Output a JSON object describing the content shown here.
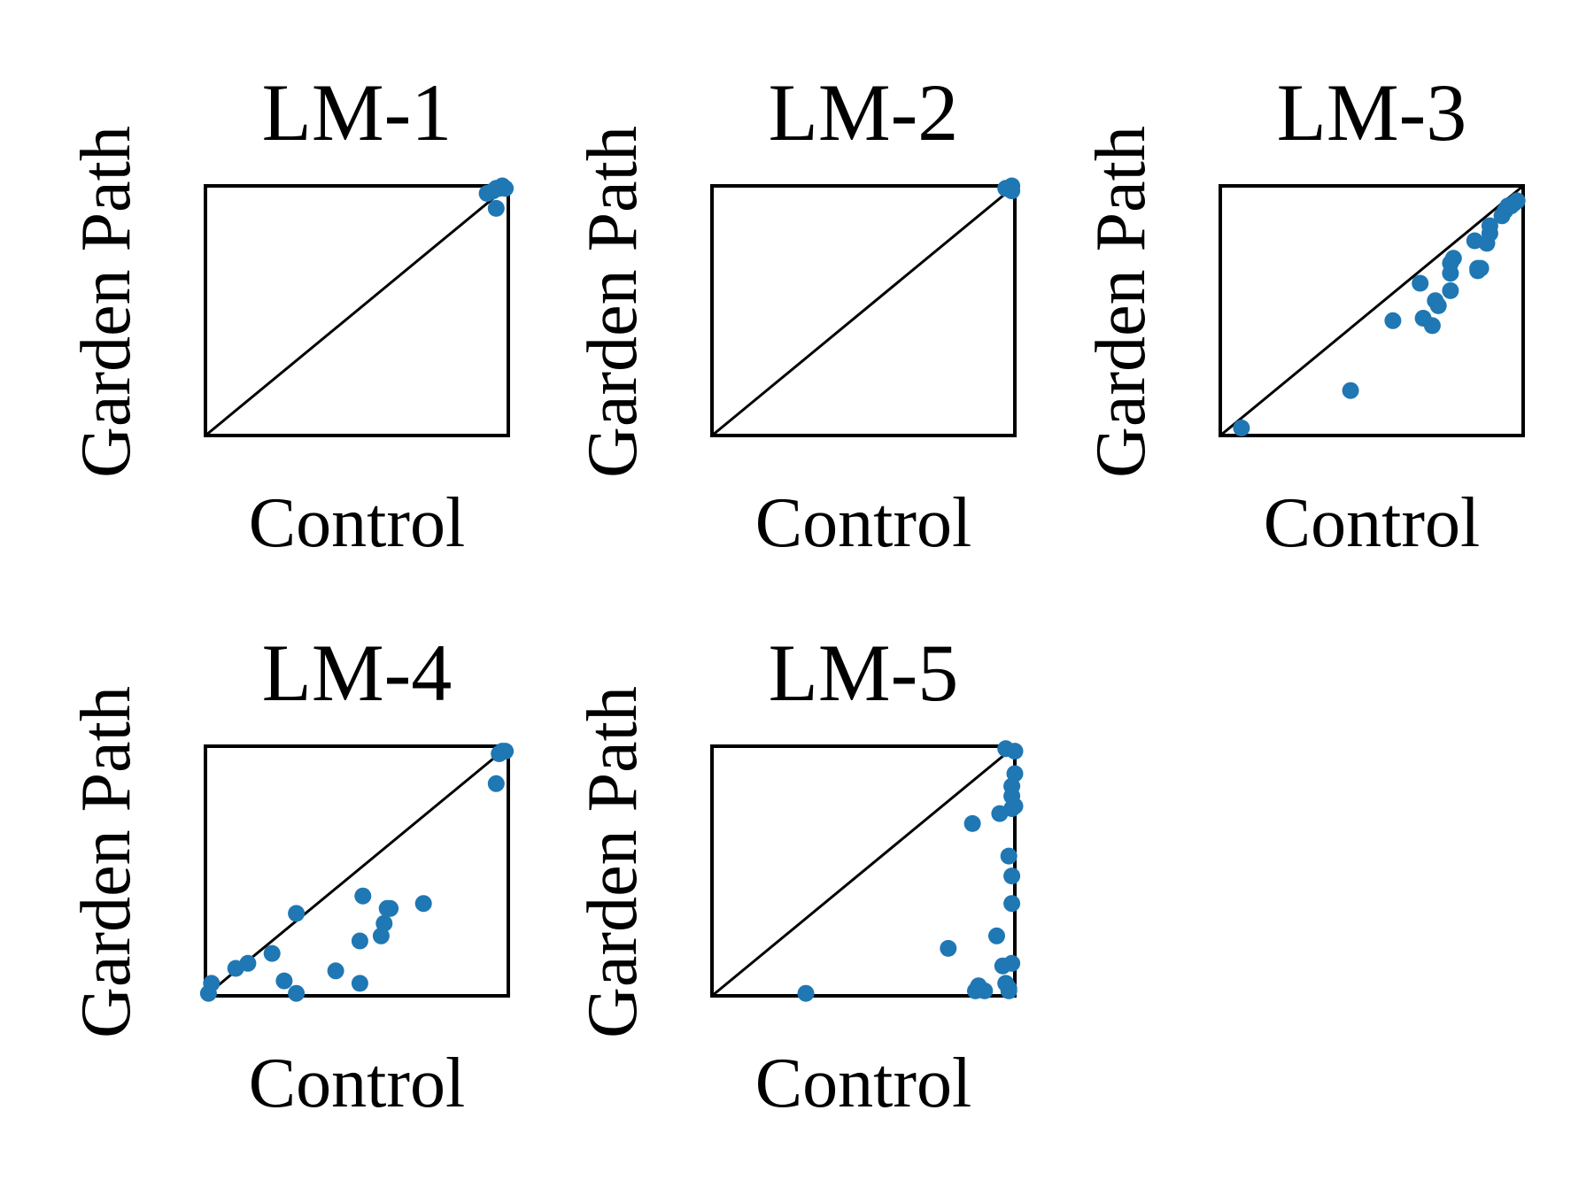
{
  "style": {
    "point_color": "#1f77b4"
  },
  "chart_data": [
    {
      "type": "scatter",
      "title": "LM-1",
      "xlabel": "Control",
      "ylabel": "Garden Path",
      "xlim": [
        0,
        1
      ],
      "ylim": [
        0,
        1
      ],
      "grid": false,
      "x": [
        0.93,
        0.95,
        0.96,
        0.97,
        0.98,
        0.99,
        0.96
      ],
      "y": [
        0.97,
        0.98,
        0.99,
        0.99,
        1.0,
        0.99,
        0.91
      ]
    },
    {
      "type": "scatter",
      "title": "LM-2",
      "xlabel": "Control",
      "ylabel": "Garden Path",
      "xlim": [
        0,
        1
      ],
      "ylim": [
        0,
        1
      ],
      "grid": false,
      "x": [
        0.98,
        0.99,
        0.99,
        0.97
      ],
      "y": [
        0.99,
        1.0,
        0.98,
        0.99
      ]
    },
    {
      "type": "scatter",
      "title": "LM-3",
      "xlabel": "Control",
      "ylabel": "Garden Path",
      "xlim": [
        0,
        1
      ],
      "ylim": [
        0,
        1
      ],
      "grid": false,
      "x": [
        0.07,
        0.43,
        0.57,
        0.66,
        0.67,
        0.7,
        0.71,
        0.72,
        0.76,
        0.76,
        0.76,
        0.77,
        0.85,
        0.85,
        0.86,
        0.84,
        0.88,
        0.89,
        0.89,
        0.93,
        0.94,
        0.95,
        0.96,
        0.97,
        0.98
      ],
      "y": [
        0.03,
        0.18,
        0.46,
        0.61,
        0.47,
        0.44,
        0.54,
        0.52,
        0.58,
        0.65,
        0.69,
        0.71,
        0.66,
        0.67,
        0.67,
        0.78,
        0.77,
        0.81,
        0.84,
        0.88,
        0.9,
        0.92,
        0.92,
        0.93,
        0.94
      ]
    },
    {
      "type": "scatter",
      "title": "LM-4",
      "xlabel": "Control",
      "ylabel": "Garden Path",
      "xlim": [
        0,
        1
      ],
      "ylim": [
        0,
        1
      ],
      "grid": false,
      "x": [
        0.01,
        0.02,
        0.1,
        0.14,
        0.22,
        0.26,
        0.3,
        0.3,
        0.43,
        0.51,
        0.51,
        0.52,
        0.58,
        0.59,
        0.6,
        0.61,
        0.72,
        0.96,
        0.97,
        0.98,
        0.99
      ],
      "y": [
        0.01,
        0.05,
        0.11,
        0.13,
        0.17,
        0.06,
        0.01,
        0.33,
        0.1,
        0.05,
        0.22,
        0.4,
        0.24,
        0.29,
        0.35,
        0.35,
        0.37,
        0.85,
        0.97,
        0.98,
        0.98
      ]
    },
    {
      "type": "scatter",
      "title": "LM-5",
      "xlabel": "Control",
      "ylabel": "Garden Path",
      "xlim": [
        0,
        1
      ],
      "ylim": [
        0,
        1
      ],
      "grid": false,
      "x": [
        0.31,
        0.78,
        0.86,
        0.87,
        0.88,
        0.9,
        0.94,
        0.95,
        0.96,
        0.97,
        0.98,
        0.99,
        0.99,
        0.99,
        0.99,
        0.99,
        0.98,
        0.98,
        0.99,
        1.0,
        1.0,
        1.0,
        0.97
      ],
      "y": [
        0.01,
        0.19,
        0.69,
        0.02,
        0.04,
        0.02,
        0.24,
        0.73,
        0.12,
        0.05,
        0.56,
        0.37,
        0.48,
        0.75,
        0.8,
        0.84,
        0.03,
        0.02,
        0.13,
        0.76,
        0.89,
        0.98,
        0.99
      ]
    }
  ]
}
